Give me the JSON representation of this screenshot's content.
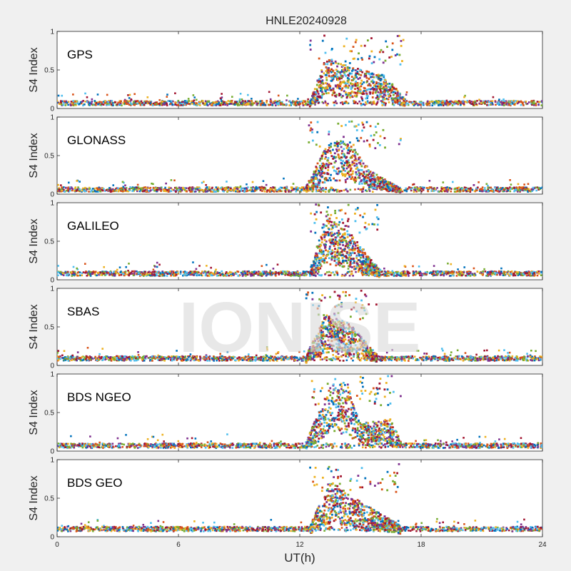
{
  "chart_data": {
    "type": "scatter",
    "title": "HNLE20240928",
    "xlabel": "UT(h)",
    "ylabel": "S4 Index",
    "xlim": [
      0,
      24
    ],
    "ylim": [
      0,
      1
    ],
    "xticks": [
      "0",
      "6",
      "12",
      "18",
      "24"
    ],
    "yticks": [
      "0",
      "0.5",
      "1"
    ],
    "watermark": "IONISE",
    "colors": [
      "#0072BD",
      "#D95319",
      "#EDB120",
      "#7E2F8E",
      "#77AC30",
      "#4DBEEE",
      "#A2142F"
    ],
    "panels": [
      {
        "label": "GPS",
        "scint_window": [
          12.5,
          17.2
        ],
        "scint_peak": 0.95,
        "baseline": 0.07,
        "trend": [
          [
            0,
            0.07
          ],
          [
            12.5,
            0.08
          ],
          [
            13.3,
            0.55
          ],
          [
            14.5,
            0.45
          ],
          [
            16.3,
            0.35
          ],
          [
            17.2,
            0.1
          ],
          [
            24,
            0.08
          ]
        ]
      },
      {
        "label": "GLONASS",
        "scint_window": [
          12.3,
          17.0
        ],
        "scint_peak": 0.98,
        "baseline": 0.06,
        "trend": [
          [
            0,
            0.06
          ],
          [
            12.3,
            0.08
          ],
          [
            13.5,
            0.6
          ],
          [
            14.5,
            0.55
          ],
          [
            15.5,
            0.25
          ],
          [
            17.0,
            0.06
          ],
          [
            24,
            0.05
          ]
        ]
      },
      {
        "label": "GALILEO",
        "scint_window": [
          12.5,
          16.0
        ],
        "scint_peak": 0.98,
        "baseline": 0.08,
        "trend": [
          [
            0,
            0.08
          ],
          [
            12.5,
            0.1
          ],
          [
            13.3,
            0.7
          ],
          [
            14.5,
            0.5
          ],
          [
            16.0,
            0.1
          ],
          [
            24,
            0.08
          ]
        ]
      },
      {
        "label": "SBAS",
        "scint_window": [
          12.3,
          15.8
        ],
        "scint_peak": 0.98,
        "baseline": 0.09,
        "trend": [
          [
            0,
            0.09
          ],
          [
            12.3,
            0.1
          ],
          [
            13.3,
            0.55
          ],
          [
            14.5,
            0.45
          ],
          [
            15.8,
            0.12
          ],
          [
            24,
            0.1
          ]
        ]
      },
      {
        "label": "BDS NGEO",
        "scint_window": [
          12.3,
          17.0
        ],
        "scint_peak": 0.98,
        "baseline": 0.07,
        "trend": [
          [
            0,
            0.07
          ],
          [
            12.3,
            0.1
          ],
          [
            13.5,
            0.7
          ],
          [
            14.3,
            0.75
          ],
          [
            15.0,
            0.3
          ],
          [
            16.5,
            0.35
          ],
          [
            17.0,
            0.1
          ],
          [
            24,
            0.05
          ]
        ]
      },
      {
        "label": "BDS GEO",
        "scint_window": [
          12.5,
          17.0
        ],
        "scint_peak": 0.95,
        "baseline": 0.1,
        "trend": [
          [
            0,
            0.1
          ],
          [
            12.5,
            0.12
          ],
          [
            13.5,
            0.6
          ],
          [
            14.5,
            0.45
          ],
          [
            16.0,
            0.25
          ],
          [
            17.0,
            0.12
          ],
          [
            24,
            0.1
          ]
        ]
      }
    ]
  }
}
